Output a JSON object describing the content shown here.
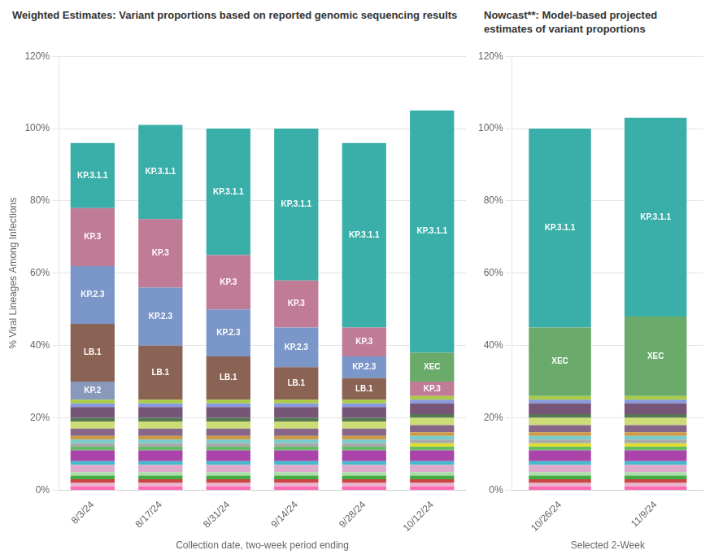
{
  "chart_data": [
    {
      "type": "bar",
      "stacked": true,
      "title": "Weighted Estimates: Variant proportions based on reported genomic sequencing results",
      "xlabel": "Collection date, two-week period ending",
      "ylabel": "% Viral Lineages Among Infections",
      "categories": [
        "8/3/24",
        "8/17/24",
        "8/31/24",
        "9/14/24",
        "9/28/24",
        "10/12/24"
      ],
      "series": [
        {
          "color": "#ff69b4",
          "values": [
            1,
            1,
            1,
            1,
            1,
            1
          ]
        },
        {
          "color": "#e8b4d0",
          "values": [
            1,
            1,
            1,
            1,
            1,
            1
          ]
        },
        {
          "color": "#cc4444",
          "values": [
            1,
            1,
            1,
            1,
            1,
            1
          ]
        },
        {
          "color": "#44aa44",
          "values": [
            1,
            1,
            1,
            1,
            1,
            1
          ]
        },
        {
          "color": "#aaddaa",
          "values": [
            1,
            1,
            1,
            1,
            1,
            1
          ]
        },
        {
          "color": "#ddaacc",
          "values": [
            2,
            2,
            2,
            2,
            2,
            2
          ]
        },
        {
          "color": "#44bbcc",
          "values": [
            1,
            1,
            1,
            1,
            1,
            1
          ]
        },
        {
          "color": "#aa44aa",
          "values": [
            3,
            3,
            3,
            3,
            3,
            3
          ]
        },
        {
          "color": "#66bb66",
          "values": [
            1,
            1,
            1,
            1,
            1,
            1
          ]
        },
        {
          "color": "#dddd33",
          "values": [
            0,
            0,
            0,
            0,
            0,
            1
          ]
        },
        {
          "color": "#aaaaaa",
          "values": [
            1,
            1,
            1,
            1,
            1,
            1
          ]
        },
        {
          "color": "#77cccc",
          "values": [
            1,
            1,
            1,
            1,
            1,
            1
          ]
        },
        {
          "color": "#cc9944",
          "values": [
            1,
            1,
            1,
            1,
            1,
            1
          ]
        },
        {
          "color": "#886688",
          "values": [
            2,
            2,
            2,
            2,
            2,
            2
          ]
        },
        {
          "color": "#ccdd77",
          "values": [
            2,
            2,
            2,
            2,
            2,
            2
          ]
        },
        {
          "color": "#557755",
          "values": [
            1,
            1,
            1,
            1,
            1,
            1
          ]
        },
        {
          "color": "#775577",
          "values": [
            3,
            3,
            3,
            3,
            3,
            3
          ]
        },
        {
          "color": "#8899dd",
          "values": [
            1,
            1,
            1,
            1,
            1,
            1
          ]
        },
        {
          "color": "#aacc44",
          "values": [
            1,
            1,
            1,
            1,
            1,
            1
          ]
        },
        {
          "name": "KP.2",
          "color": "#8899bb",
          "values": [
            5,
            0,
            0,
            0,
            0,
            0
          ]
        },
        {
          "name": "LB.1",
          "color": "#8b6355",
          "values": [
            16,
            15,
            12,
            9,
            6,
            0
          ]
        },
        {
          "name": "KP.2.3",
          "color": "#7b96c8",
          "values": [
            16,
            16,
            13,
            11,
            6,
            0
          ]
        },
        {
          "name": "KP.3",
          "color": "#c07b96",
          "values": [
            16,
            19,
            15,
            13,
            8,
            4
          ]
        },
        {
          "name": "XEC",
          "color": "#6aaa6a",
          "values": [
            0,
            0,
            0,
            0,
            0,
            8
          ]
        },
        {
          "name": "KP.3.1.1",
          "color": "#3aafa9",
          "values": [
            18,
            26,
            35,
            42,
            51,
            67
          ]
        }
      ],
      "ylim": [
        0,
        120
      ],
      "yticks": [
        {
          "value": 0,
          "label": "0%"
        },
        {
          "value": 20,
          "label": "20%"
        },
        {
          "value": 40,
          "label": "40%"
        },
        {
          "value": 60,
          "label": "60%"
        },
        {
          "value": 80,
          "label": "80%"
        },
        {
          "value": 100,
          "label": "100%"
        },
        {
          "value": 120,
          "label": "120%"
        }
      ],
      "grid": "y"
    },
    {
      "type": "bar",
      "stacked": true,
      "title": "Nowcast**: Model-based projected estimates of variant proportions",
      "categories": [
        "10/26/24",
        "11/9/24"
      ],
      "series": [
        {
          "color": "#ff69b4",
          "values": [
            1,
            1
          ]
        },
        {
          "color": "#e8b4d0",
          "values": [
            1,
            1
          ]
        },
        {
          "color": "#cc4444",
          "values": [
            1,
            1
          ]
        },
        {
          "color": "#44aa44",
          "values": [
            1,
            1
          ]
        },
        {
          "color": "#aaddaa",
          "values": [
            1,
            1
          ]
        },
        {
          "color": "#ddaacc",
          "values": [
            2,
            2
          ]
        },
        {
          "color": "#44bbcc",
          "values": [
            1,
            1
          ]
        },
        {
          "color": "#aa44aa",
          "values": [
            3,
            3
          ]
        },
        {
          "color": "#66bb66",
          "values": [
            1,
            1
          ]
        },
        {
          "color": "#dddd33",
          "values": [
            1,
            1
          ]
        },
        {
          "color": "#aaaaaa",
          "values": [
            1,
            1
          ]
        },
        {
          "color": "#77cccc",
          "values": [
            1,
            1
          ]
        },
        {
          "color": "#cc9944",
          "values": [
            1,
            1
          ]
        },
        {
          "color": "#886688",
          "values": [
            2,
            2
          ]
        },
        {
          "color": "#ccdd77",
          "values": [
            2,
            2
          ]
        },
        {
          "color": "#557755",
          "values": [
            1,
            1
          ]
        },
        {
          "color": "#775577",
          "values": [
            3,
            3
          ]
        },
        {
          "color": "#8899dd",
          "values": [
            1,
            1
          ]
        },
        {
          "color": "#aacc44",
          "values": [
            1,
            1
          ]
        },
        {
          "color": "#8899bb",
          "values": [
            0,
            0
          ]
        },
        {
          "color": "#8b6355",
          "values": [
            0,
            0
          ]
        },
        {
          "color": "#7b96c8",
          "values": [
            0,
            0
          ]
        },
        {
          "color": "#c07b96",
          "values": [
            0,
            0
          ]
        },
        {
          "name": "XEC",
          "color": "#6aaa6a",
          "values": [
            19,
            22
          ]
        },
        {
          "name": "KP.3.1.1",
          "color": "#3aafa9",
          "values": [
            55,
            55
          ]
        }
      ],
      "ylim": [
        0,
        120
      ],
      "yticks": [
        {
          "value": 0,
          "label": "0%"
        },
        {
          "value": 20,
          "label": "20%"
        },
        {
          "value": 40,
          "label": "40%"
        },
        {
          "value": 60,
          "label": "60%"
        },
        {
          "value": 80,
          "label": "80%"
        },
        {
          "value": 100,
          "label": "100%"
        },
        {
          "value": 120,
          "label": "120%"
        }
      ],
      "grid": "y",
      "annotations": [
        "Selected 2-Week"
      ]
    }
  ]
}
